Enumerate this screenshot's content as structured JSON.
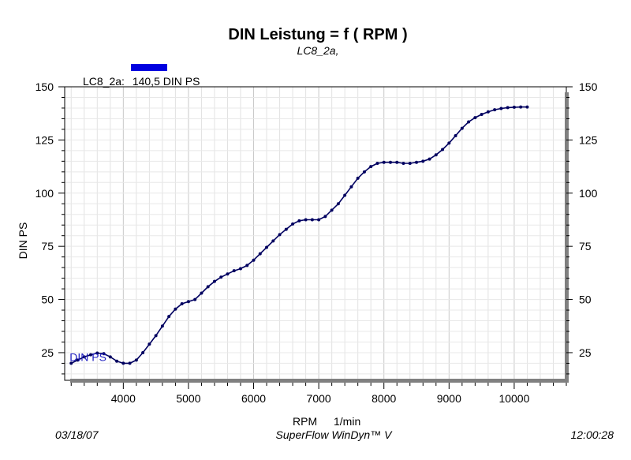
{
  "chart_data": {
    "type": "line",
    "title": "DIN Leistung = f ( RPM )",
    "subtitle": "LC8_2a,",
    "xlabel": "RPM",
    "xunit": "1/min",
    "ylabel": "DIN PS",
    "xlim": [
      3100,
      10800
    ],
    "ylim": [
      12,
      150
    ],
    "x_ticks": [
      4000,
      5000,
      6000,
      7000,
      8000,
      9000,
      10000
    ],
    "y_ticks": [
      25,
      50,
      75,
      100,
      125,
      150
    ],
    "grid": true,
    "legend": {
      "position": "top-left",
      "entry": "LC8_2a:",
      "value": "140,5 DIN PS",
      "color": "#0000e0"
    },
    "series": [
      {
        "name": "DIN PS",
        "color": "#000060",
        "points": [
          [
            3200,
            20
          ],
          [
            3300,
            21.5
          ],
          [
            3400,
            23
          ],
          [
            3500,
            24
          ],
          [
            3600,
            24.8
          ],
          [
            3700,
            24.5
          ],
          [
            3800,
            23
          ],
          [
            3900,
            21
          ],
          [
            4000,
            20
          ],
          [
            4100,
            20
          ],
          [
            4200,
            21.5
          ],
          [
            4300,
            25
          ],
          [
            4400,
            29
          ],
          [
            4500,
            33
          ],
          [
            4600,
            37.5
          ],
          [
            4700,
            42
          ],
          [
            4800,
            45.5
          ],
          [
            4900,
            48
          ],
          [
            5000,
            49
          ],
          [
            5100,
            50
          ],
          [
            5200,
            53
          ],
          [
            5300,
            56
          ],
          [
            5400,
            58.5
          ],
          [
            5500,
            60.5
          ],
          [
            5600,
            62
          ],
          [
            5700,
            63.5
          ],
          [
            5800,
            64.5
          ],
          [
            5900,
            66
          ],
          [
            6000,
            68.5
          ],
          [
            6100,
            71.5
          ],
          [
            6200,
            74.5
          ],
          [
            6300,
            77.5
          ],
          [
            6400,
            80.5
          ],
          [
            6500,
            83
          ],
          [
            6600,
            85.5
          ],
          [
            6700,
            87
          ],
          [
            6800,
            87.5
          ],
          [
            6900,
            87.5
          ],
          [
            7000,
            87.5
          ],
          [
            7100,
            89
          ],
          [
            7200,
            92
          ],
          [
            7300,
            95
          ],
          [
            7400,
            99
          ],
          [
            7500,
            103
          ],
          [
            7600,
            107
          ],
          [
            7700,
            110
          ],
          [
            7800,
            112.5
          ],
          [
            7900,
            114
          ],
          [
            8000,
            114.5
          ],
          [
            8100,
            114.5
          ],
          [
            8200,
            114.5
          ],
          [
            8300,
            114
          ],
          [
            8400,
            114
          ],
          [
            8500,
            114.5
          ],
          [
            8600,
            115
          ],
          [
            8700,
            116
          ],
          [
            8800,
            118
          ],
          [
            8900,
            120.5
          ],
          [
            9000,
            123.5
          ],
          [
            9100,
            127
          ],
          [
            9200,
            130.5
          ],
          [
            9300,
            133.5
          ],
          [
            9400,
            135.5
          ],
          [
            9500,
            137
          ],
          [
            9600,
            138.2
          ],
          [
            9700,
            139.2
          ],
          [
            9800,
            139.8
          ],
          [
            9900,
            140.2
          ],
          [
            10000,
            140.4
          ],
          [
            10100,
            140.5
          ],
          [
            10200,
            140.5
          ]
        ]
      }
    ]
  },
  "footer": {
    "date": "03/18/07",
    "software": "SuperFlow WinDyn™ V",
    "time": "12:00:28"
  }
}
